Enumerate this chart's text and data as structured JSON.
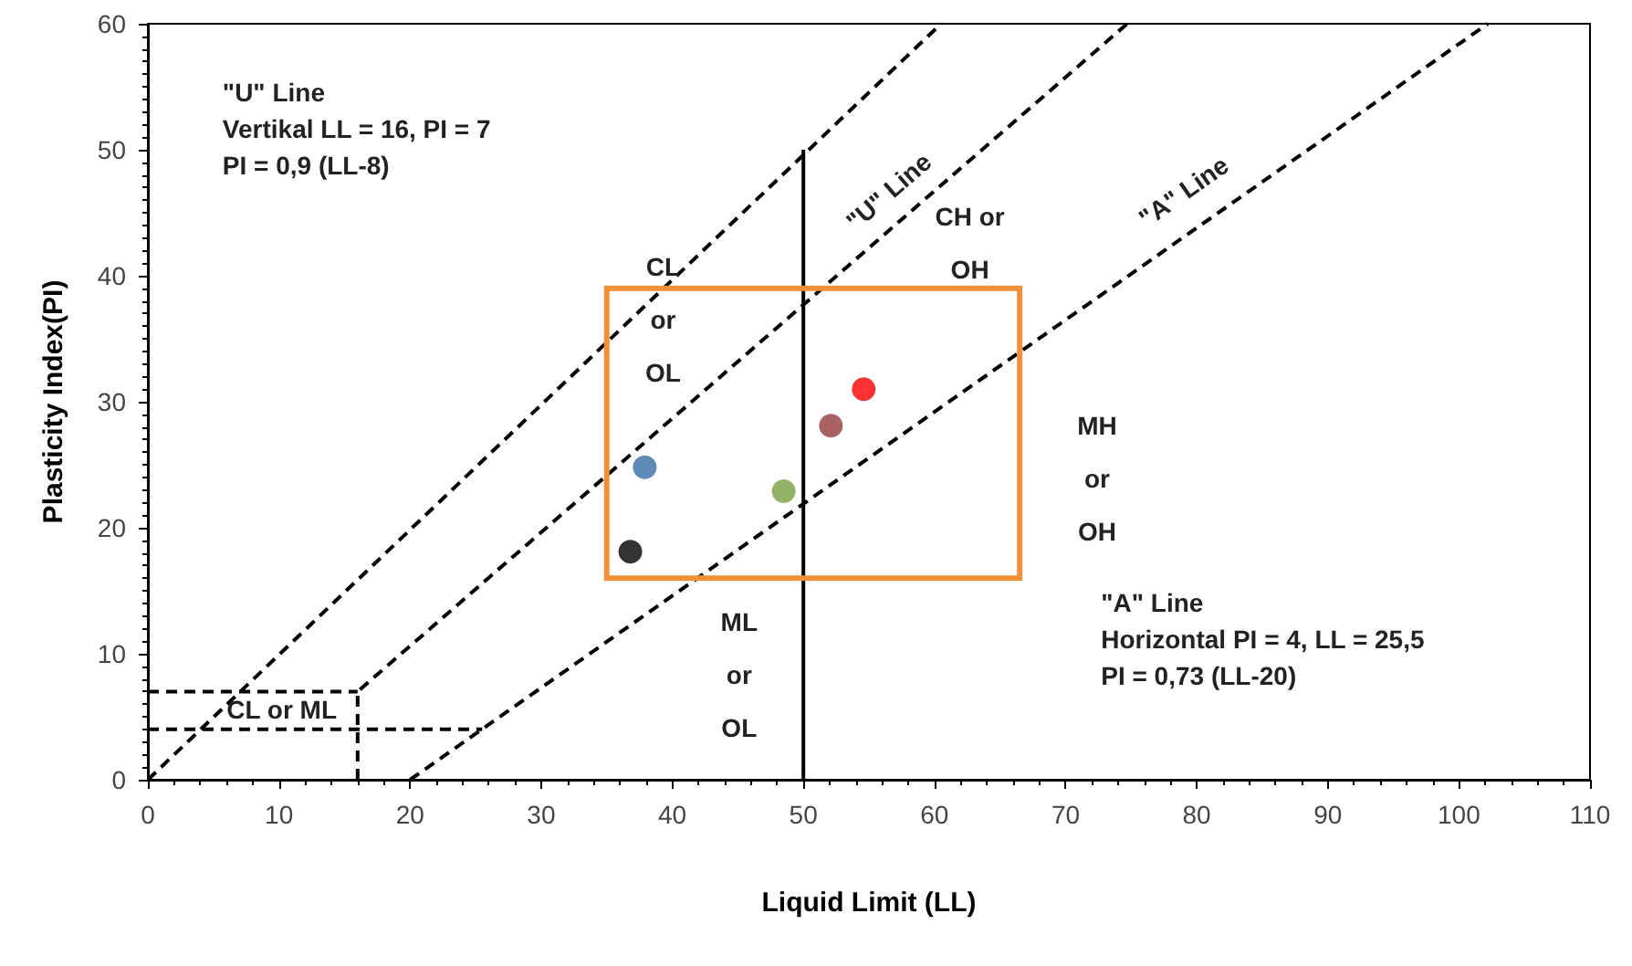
{
  "chart_data": {
    "type": "scatter",
    "xlabel": "Liquid Limit (LL)",
    "ylabel": "Plasticity Index(PI)",
    "xlim": [
      0,
      110
    ],
    "xticks": [
      0,
      10,
      20,
      30,
      40,
      50,
      60,
      70,
      80,
      90,
      100,
      110
    ],
    "ylim": [
      0,
      60
    ],
    "yticks": [
      0,
      10,
      20,
      30,
      40,
      50,
      60
    ],
    "series": [
      {
        "marker": "circle",
        "x": [
          37.9,
          36.8,
          48.5,
          52.1,
          54.6
        ],
        "values": [
          24.8,
          18.1,
          22.9,
          28.1,
          31.0
        ],
        "colors": [
          "#3a6ea5",
          "#000000",
          "#77a03c",
          "#943c3c",
          "#ff0000"
        ]
      },
      {
        "type": "line",
        "marker": "none",
        "line_style": "dashed",
        "color": "#000000",
        "x": [
          0,
          60.5
        ],
        "values": [
          0,
          60
        ]
      },
      {
        "type": "line",
        "marker": "none",
        "line_style": "dashed",
        "color": "#000000",
        "x": [
          16,
          16,
          74.7
        ],
        "values": [
          0,
          7,
          60
        ]
      },
      {
        "type": "line",
        "marker": "none",
        "line_style": "dashed",
        "color": "#000000",
        "x": [
          0,
          16
        ],
        "values": [
          7,
          7
        ]
      },
      {
        "type": "line",
        "marker": "none",
        "line_style": "dashed",
        "color": "#000000",
        "x": [
          0,
          25.5
        ],
        "values": [
          4,
          4
        ]
      },
      {
        "type": "line",
        "marker": "none",
        "line_style": "dashed",
        "color": "#000000",
        "x": [
          20,
          102.2
        ],
        "values": [
          0,
          60
        ]
      },
      {
        "type": "line",
        "marker": "none",
        "line_style": "solid",
        "color": "#000000",
        "x": [
          50,
          50
        ],
        "values": [
          0,
          50
        ]
      }
    ],
    "annotations": [
      "\"U\" Line\nVertikal LL = 16, PI = 7\nPI = 0,9 (LL-8)",
      "CL\nor\nOL",
      "\"U\" Line",
      "CH or\nOH",
      "\"A\" Line",
      "MH\nor\nOH",
      "ML\nor\nOL",
      "\"A\" Line\nHorizontal PI = 4, LL = 25,5\nPI = 0,73 (LL-20)",
      "CL or ML"
    ]
  }
}
